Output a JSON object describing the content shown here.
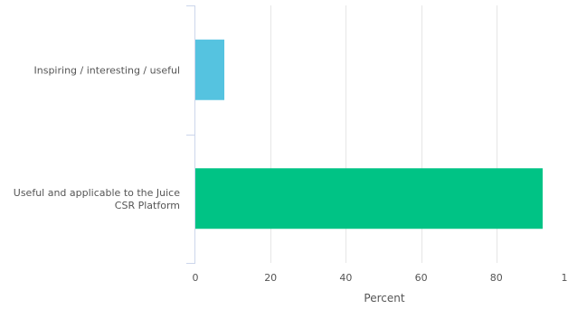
{
  "chart_data": {
    "type": "bar",
    "orientation": "horizontal",
    "categories": [
      [
        "Inspiring / interesting / useful"
      ],
      [
        "Useful and applicable to the Juice",
        "CSR Platform"
      ]
    ],
    "values": [
      7.7,
      92.3
    ],
    "colors": [
      "#55c3e0",
      "#00c385"
    ],
    "xlabel": "Percent",
    "xlim": [
      0,
      100
    ],
    "xticks": [
      "0",
      "20",
      "40",
      "60",
      "80",
      "1"
    ],
    "grid": true
  }
}
